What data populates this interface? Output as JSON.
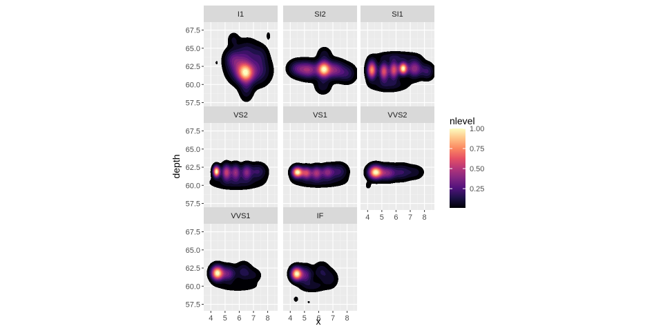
{
  "chart_data": {
    "type": "heatmap",
    "subtype": "faceted 2D density contour (filled)",
    "xlabel": "x",
    "ylabel": "depth",
    "x_ticks": [
      4,
      5,
      6,
      7,
      8
    ],
    "y_ticks": [
      "57.5",
      "60.0",
      "62.5",
      "65.0",
      "67.5"
    ],
    "xlim": [
      3.5,
      8.7
    ],
    "ylim": [
      56.6,
      68.6
    ],
    "grid": true,
    "panel_background": "#EBEBEB",
    "strip_background": "#D9D9D9",
    "facet_columns": 3,
    "legend": {
      "title": "nlevel",
      "position": "right",
      "ticks": [
        "1.00",
        "0.75",
        "0.50",
        "0.25"
      ],
      "tick_values": [
        1.0,
        0.75,
        0.5,
        0.25
      ],
      "colors": [
        "#000004",
        "#1D1147",
        "#51127C",
        "#822681",
        "#B63679",
        "#E65164",
        "#FB8861",
        "#FEC287",
        "#FCFDBF"
      ]
    },
    "facets": [
      {
        "name": "I1",
        "peaks": [
          {
            "x": 6.45,
            "y": 61.6,
            "sx": 0.38,
            "sy": 0.9,
            "w": 1.0
          },
          {
            "x": 5.9,
            "y": 62.6,
            "sx": 0.5,
            "sy": 1.3,
            "w": 0.4
          },
          {
            "x": 7.3,
            "y": 61.9,
            "sx": 0.55,
            "sy": 1.2,
            "w": 0.32
          },
          {
            "x": 6.6,
            "y": 64.4,
            "sx": 0.5,
            "sy": 1.1,
            "w": 0.22
          },
          {
            "x": 6.5,
            "y": 59.4,
            "sx": 0.3,
            "sy": 1.0,
            "w": 0.2
          },
          {
            "x": 5.5,
            "y": 63.6,
            "sx": 0.35,
            "sy": 0.8,
            "w": 0.18
          },
          {
            "x": 5.6,
            "y": 66.2,
            "sx": 0.25,
            "sy": 0.6,
            "w": 0.12
          },
          {
            "x": 7.5,
            "y": 64.0,
            "sx": 0.35,
            "sy": 0.9,
            "w": 0.15
          },
          {
            "x": 4.4,
            "y": 63.0,
            "sx": 0.08,
            "sy": 0.25,
            "w": 0.05
          },
          {
            "x": 8.05,
            "y": 66.7,
            "sx": 0.1,
            "sy": 0.4,
            "w": 0.08
          }
        ]
      },
      {
        "name": "SI2",
        "peaks": [
          {
            "x": 6.35,
            "y": 62.1,
            "sx": 0.3,
            "sy": 0.75,
            "w": 1.0
          },
          {
            "x": 5.3,
            "y": 62.0,
            "sx": 0.45,
            "sy": 0.75,
            "w": 0.5
          },
          {
            "x": 4.5,
            "y": 62.2,
            "sx": 0.4,
            "sy": 0.7,
            "w": 0.3
          },
          {
            "x": 7.1,
            "y": 62.0,
            "sx": 0.45,
            "sy": 0.8,
            "w": 0.45
          },
          {
            "x": 8.0,
            "y": 61.5,
            "sx": 0.4,
            "sy": 0.8,
            "w": 0.22
          },
          {
            "x": 6.3,
            "y": 59.8,
            "sx": 0.35,
            "sy": 0.7,
            "w": 0.15
          },
          {
            "x": 6.4,
            "y": 64.2,
            "sx": 0.3,
            "sy": 0.6,
            "w": 0.13
          }
        ]
      },
      {
        "name": "SI1",
        "peaks": [
          {
            "x": 6.5,
            "y": 62.2,
            "sx": 0.2,
            "sy": 0.55,
            "w": 0.9
          },
          {
            "x": 4.3,
            "y": 62.0,
            "sx": 0.22,
            "sy": 0.8,
            "w": 0.72
          },
          {
            "x": 5.15,
            "y": 61.8,
            "sx": 0.22,
            "sy": 0.8,
            "w": 0.58
          },
          {
            "x": 5.85,
            "y": 62.0,
            "sx": 0.22,
            "sy": 0.8,
            "w": 0.58
          },
          {
            "x": 7.3,
            "y": 62.2,
            "sx": 0.35,
            "sy": 0.8,
            "w": 0.42
          },
          {
            "x": 8.2,
            "y": 61.8,
            "sx": 0.3,
            "sy": 0.7,
            "w": 0.2
          },
          {
            "x": 5.5,
            "y": 60.0,
            "sx": 0.8,
            "sy": 0.6,
            "w": 0.14
          },
          {
            "x": 6.0,
            "y": 63.8,
            "sx": 0.9,
            "sy": 0.45,
            "w": 0.13
          }
        ]
      },
      {
        "name": "VS2",
        "peaks": [
          {
            "x": 4.4,
            "y": 61.9,
            "sx": 0.16,
            "sy": 0.5,
            "w": 0.9
          },
          {
            "x": 5.1,
            "y": 61.8,
            "sx": 0.22,
            "sy": 0.7,
            "w": 0.5
          },
          {
            "x": 5.75,
            "y": 61.8,
            "sx": 0.22,
            "sy": 0.7,
            "w": 0.4
          },
          {
            "x": 6.5,
            "y": 61.8,
            "sx": 0.25,
            "sy": 0.7,
            "w": 0.35
          },
          {
            "x": 7.3,
            "y": 61.9,
            "sx": 0.4,
            "sy": 0.7,
            "w": 0.2
          },
          {
            "x": 5.8,
            "y": 60.4,
            "sx": 1.1,
            "sy": 0.6,
            "w": 0.12
          }
        ]
      },
      {
        "name": "VS1",
        "peaks": [
          {
            "x": 4.5,
            "y": 61.8,
            "sx": 0.25,
            "sy": 0.5,
            "w": 0.85
          },
          {
            "x": 5.15,
            "y": 61.7,
            "sx": 0.25,
            "sy": 0.55,
            "w": 0.5
          },
          {
            "x": 5.85,
            "y": 61.7,
            "sx": 0.25,
            "sy": 0.6,
            "w": 0.42
          },
          {
            "x": 6.6,
            "y": 61.8,
            "sx": 0.3,
            "sy": 0.6,
            "w": 0.35
          },
          {
            "x": 7.4,
            "y": 61.9,
            "sx": 0.4,
            "sy": 0.7,
            "w": 0.2
          },
          {
            "x": 6.0,
            "y": 60.5,
            "sx": 1.1,
            "sy": 0.5,
            "w": 0.1
          }
        ]
      },
      {
        "name": "VVS2",
        "peaks": [
          {
            "x": 4.55,
            "y": 61.8,
            "sx": 0.32,
            "sy": 0.6,
            "w": 0.95
          },
          {
            "x": 5.4,
            "y": 61.7,
            "sx": 0.4,
            "sy": 0.65,
            "w": 0.4
          },
          {
            "x": 6.4,
            "y": 61.8,
            "sx": 0.4,
            "sy": 0.7,
            "w": 0.2
          },
          {
            "x": 7.3,
            "y": 61.8,
            "sx": 0.4,
            "sy": 0.6,
            "w": 0.12
          },
          {
            "x": 4.05,
            "y": 60.0,
            "sx": 0.12,
            "sy": 0.3,
            "w": 0.08
          }
        ]
      },
      {
        "name": "VVS1",
        "peaks": [
          {
            "x": 4.45,
            "y": 61.8,
            "sx": 0.28,
            "sy": 0.65,
            "w": 1.0
          },
          {
            "x": 5.2,
            "y": 61.7,
            "sx": 0.35,
            "sy": 0.7,
            "w": 0.35
          },
          {
            "x": 6.3,
            "y": 62.0,
            "sx": 0.35,
            "sy": 0.8,
            "w": 0.18
          },
          {
            "x": 7.0,
            "y": 61.5,
            "sx": 0.35,
            "sy": 0.6,
            "w": 0.1
          },
          {
            "x": 5.9,
            "y": 60.0,
            "sx": 0.9,
            "sy": 0.45,
            "w": 0.08
          }
        ]
      },
      {
        "name": "IF",
        "peaks": [
          {
            "x": 4.45,
            "y": 61.7,
            "sx": 0.26,
            "sy": 0.6,
            "w": 1.0
          },
          {
            "x": 5.1,
            "y": 61.5,
            "sx": 0.3,
            "sy": 0.8,
            "w": 0.3
          },
          {
            "x": 5.6,
            "y": 60.0,
            "sx": 0.55,
            "sy": 0.5,
            "w": 0.12
          },
          {
            "x": 6.2,
            "y": 62.0,
            "sx": 0.35,
            "sy": 0.8,
            "w": 0.15
          },
          {
            "x": 6.8,
            "y": 61.0,
            "sx": 0.35,
            "sy": 0.8,
            "w": 0.12
          },
          {
            "x": 4.4,
            "y": 58.2,
            "sx": 0.15,
            "sy": 0.35,
            "w": 0.05
          },
          {
            "x": 5.3,
            "y": 57.8,
            "sx": 0.1,
            "sy": 0.2,
            "w": 0.04
          }
        ]
      }
    ]
  }
}
